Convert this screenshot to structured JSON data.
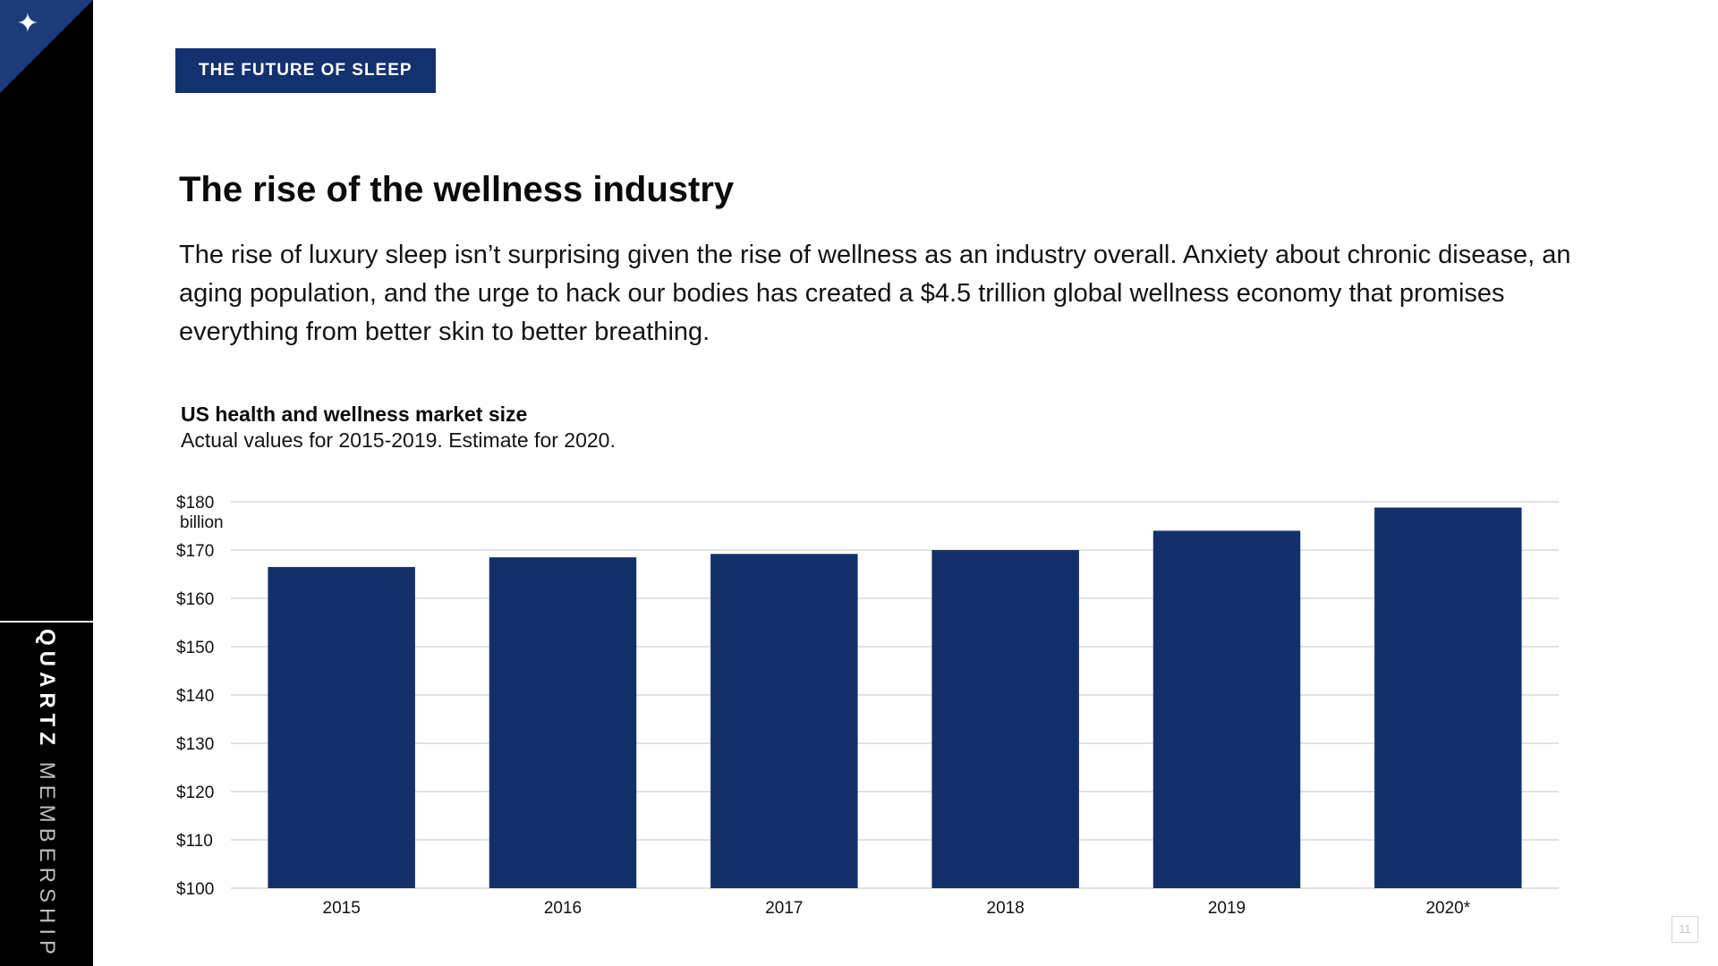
{
  "sidebar": {
    "brand_primary": "QUARTZ",
    "brand_secondary": "MEMBERSHIP",
    "logo_icon": "sparkle-star-icon"
  },
  "tag": "THE FUTURE OF SLEEP",
  "title": "The rise of the wellness industry",
  "body": "The rise of luxury sleep isn’t surprising given the rise of wellness as an industry overall. Anxiety about chronic disease, an aging population, and the urge to hack our bodies has created a $4.5 trillion global wellness economy that promises everything from better skin to better breathing.",
  "page_number": "11",
  "colors": {
    "bar": "#13306b",
    "tag": "#13316e",
    "corner": "#1d3b78"
  },
  "chart_data": {
    "type": "bar",
    "title": "US health and wellness market size",
    "subtitle": "Actual values for 2015-2019. Estimate for 2020.",
    "categories": [
      "2015",
      "2016",
      "2017",
      "2018",
      "2019",
      "2020*"
    ],
    "values": [
      166.5,
      168.5,
      169.2,
      170,
      174,
      178.8
    ],
    "ylim": [
      100,
      180
    ],
    "yticks": [
      100,
      110,
      120,
      130,
      140,
      150,
      160,
      170,
      180
    ],
    "ytick_labels": [
      "$100",
      "$110",
      "$120",
      "$130",
      "$140",
      "$150",
      "$160",
      "$170",
      "$180"
    ],
    "y_unit": "billion",
    "grid": true
  }
}
